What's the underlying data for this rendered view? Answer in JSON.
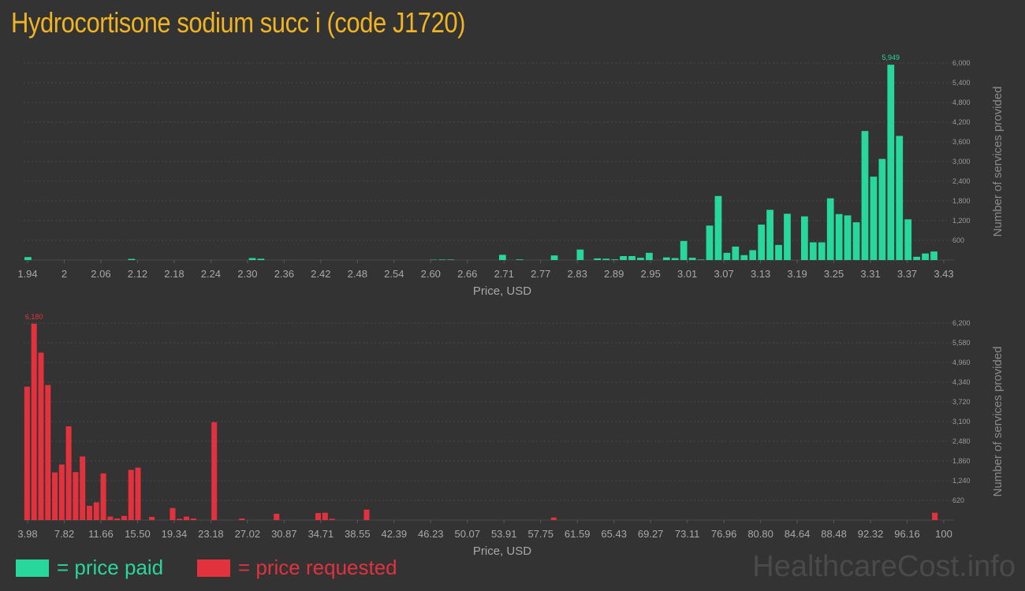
{
  "title": "Hydrocortisone sodium succ i (code J1720)",
  "watermark": "HealthcareCost.info",
  "legend": [
    {
      "label": "= price paid",
      "color": "#27d79b"
    },
    {
      "label": "= price requested",
      "color": "#e1323e"
    }
  ],
  "chart_data": [
    {
      "type": "bar",
      "name": "price paid",
      "color": "#27d79b",
      "xlabel": "Price, USD",
      "ylabel": "Number of services provided",
      "ylim": [
        0,
        6000
      ],
      "yticks": [
        "600",
        "1,200",
        "1,800",
        "2,400",
        "3,000",
        "3,600",
        "4,200",
        "4,800",
        "5,400",
        "6,000"
      ],
      "ytick_values": [
        600,
        1200,
        1800,
        2400,
        3000,
        3600,
        4200,
        4800,
        5400,
        6000
      ],
      "xticks": [
        "1.94",
        "2",
        "2.06",
        "2.12",
        "2.18",
        "2.24",
        "2.30",
        "2.36",
        "2.42",
        "2.48",
        "2.54",
        "2.60",
        "2.66",
        "2.71",
        "2.77",
        "2.83",
        "2.89",
        "2.95",
        "3.01",
        "3.07",
        "3.13",
        "3.19",
        "3.25",
        "3.31",
        "3.37",
        "3.43"
      ],
      "peak_label": "5,949",
      "values": [
        90,
        0,
        0,
        0,
        0,
        0,
        0,
        0,
        0,
        0,
        0,
        0,
        35,
        0,
        0,
        0,
        0,
        0,
        0,
        0,
        0,
        0,
        0,
        0,
        0,
        0,
        60,
        40,
        0,
        0,
        0,
        0,
        0,
        0,
        0,
        0,
        0,
        0,
        0,
        0,
        0,
        0,
        0,
        0,
        0,
        0,
        0,
        10,
        15,
        15,
        0,
        0,
        0,
        0,
        0,
        160,
        0,
        20,
        0,
        0,
        0,
        140,
        0,
        0,
        320,
        0,
        50,
        40,
        20,
        120,
        120,
        70,
        220,
        0,
        80,
        60,
        580,
        70,
        15,
        1050,
        1950,
        220,
        410,
        150,
        300,
        1080,
        1530,
        460,
        1410,
        0,
        1330,
        540,
        540,
        1880,
        1400,
        1360,
        1150,
        3930,
        2540,
        3080,
        5949,
        3780,
        1240,
        100,
        200,
        260
      ]
    },
    {
      "type": "bar",
      "name": "price requested",
      "color": "#e1323e",
      "xlabel": "Price, USD",
      "ylabel": "Number of services provided",
      "ylim": [
        0,
        6200
      ],
      "yticks": [
        "620",
        "1,240",
        "1,860",
        "2,480",
        "3,100",
        "3,720",
        "4,340",
        "4,960",
        "5,580",
        "6,200"
      ],
      "ytick_values": [
        620,
        1240,
        1860,
        2480,
        3100,
        3720,
        4340,
        4960,
        5580,
        6200
      ],
      "xticks": [
        "3.98",
        "7.82",
        "11.66",
        "15.50",
        "19.34",
        "23.18",
        "27.02",
        "30.87",
        "34.71",
        "38.55",
        "42.39",
        "46.23",
        "50.07",
        "53.91",
        "57.75",
        "61.59",
        "65.43",
        "69.27",
        "73.11",
        "76.96",
        "80.80",
        "84.64",
        "88.48",
        "92.32",
        "96.16",
        "100"
      ],
      "peak_label": "6,180",
      "values": [
        4200,
        6180,
        5270,
        4250,
        1500,
        1750,
        2950,
        1510,
        2000,
        450,
        560,
        1470,
        110,
        50,
        130,
        1580,
        1650,
        0,
        100,
        0,
        0,
        380,
        40,
        110,
        50,
        0,
        0,
        3080,
        0,
        0,
        0,
        50,
        0,
        0,
        0,
        0,
        200,
        0,
        0,
        0,
        0,
        0,
        220,
        230,
        40,
        0,
        0,
        0,
        0,
        330,
        0,
        0,
        0,
        0,
        0,
        0,
        0,
        0,
        0,
        0,
        0,
        0,
        0,
        0,
        0,
        0,
        0,
        0,
        0,
        0,
        0,
        0,
        0,
        0,
        0,
        0,
        80,
        0,
        0,
        0,
        0,
        0,
        0,
        0,
        0,
        0,
        0,
        0,
        0,
        0,
        0,
        0,
        0,
        0,
        0,
        0,
        0,
        0,
        0,
        0,
        0,
        0,
        0,
        0,
        0,
        0,
        0,
        0,
        0,
        0,
        0,
        0,
        0,
        0,
        0,
        0,
        0,
        0,
        0,
        0,
        0,
        0,
        0,
        0,
        0,
        0,
        0,
        0,
        0,
        0,
        0,
        230
      ]
    }
  ]
}
